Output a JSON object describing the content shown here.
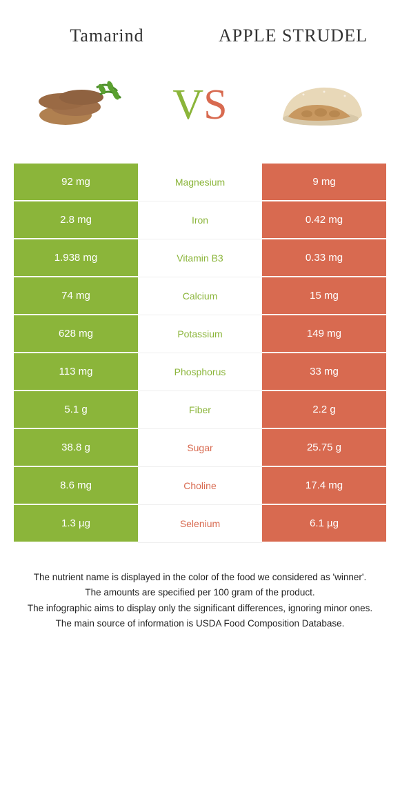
{
  "colors": {
    "green": "#8bb53a",
    "red": "#d86a50",
    "white": "#ffffff"
  },
  "header": {
    "left_title": "Tamarind",
    "right_title": "Apple strudel"
  },
  "vs": {
    "v": "V",
    "s": "S"
  },
  "rows": [
    {
      "nutrient": "Magnesium",
      "left": "92 mg",
      "right": "9 mg",
      "winner": "left"
    },
    {
      "nutrient": "Iron",
      "left": "2.8 mg",
      "right": "0.42 mg",
      "winner": "left"
    },
    {
      "nutrient": "Vitamin B3",
      "left": "1.938 mg",
      "right": "0.33 mg",
      "winner": "left"
    },
    {
      "nutrient": "Calcium",
      "left": "74 mg",
      "right": "15 mg",
      "winner": "left"
    },
    {
      "nutrient": "Potassium",
      "left": "628 mg",
      "right": "149 mg",
      "winner": "left"
    },
    {
      "nutrient": "Phosphorus",
      "left": "113 mg",
      "right": "33 mg",
      "winner": "left"
    },
    {
      "nutrient": "Fiber",
      "left": "5.1 g",
      "right": "2.2 g",
      "winner": "left"
    },
    {
      "nutrient": "Sugar",
      "left": "38.8 g",
      "right": "25.75 g",
      "winner": "right"
    },
    {
      "nutrient": "Choline",
      "left": "8.6 mg",
      "right": "17.4 mg",
      "winner": "right"
    },
    {
      "nutrient": "Selenium",
      "left": "1.3 µg",
      "right": "6.1 µg",
      "winner": "right"
    }
  ],
  "footer": {
    "l1": "The nutrient name is displayed in the color of the food we considered as 'winner'.",
    "l2": "The amounts are specified per 100 gram of the product.",
    "l3": "The infographic aims to display only the significant differences, ignoring minor ones.",
    "l4": "The main source of information is USDA Food Composition Database."
  }
}
